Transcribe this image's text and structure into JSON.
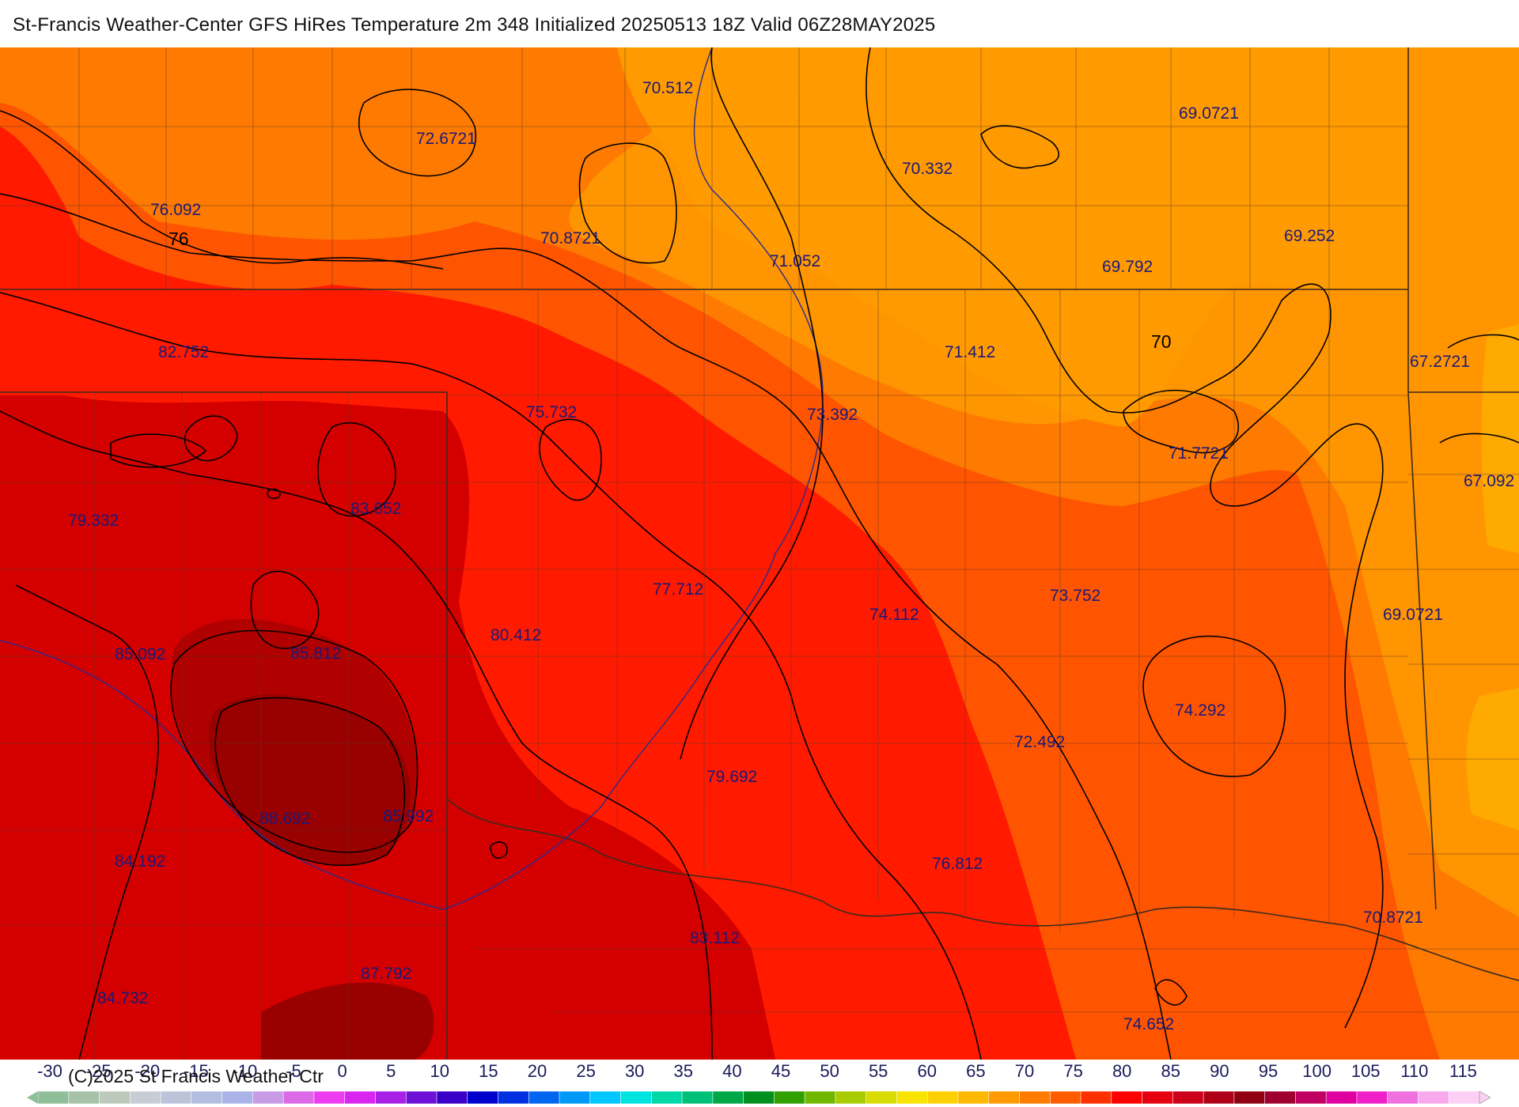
{
  "title": "St-Francis Weather-Center GFS HiRes Temperature 2m  348 Initialized 20250513 18Z Valid 06Z28MAY2025",
  "copyright": "(C)2025 St Francis Weather Ctr",
  "contour_labels": [
    "76",
    "70"
  ],
  "point_values": [
    "70.512",
    "72.6721",
    "76.092",
    "70.8721",
    "70.332",
    "69.0721",
    "69.252",
    "71.052",
    "69.792",
    "82.752",
    "71.412",
    "67.2721",
    "75.732",
    "73.392",
    "71.7721",
    "83.652",
    "79.332",
    "67.092",
    "77.712",
    "74.112",
    "73.752",
    "69.0721",
    "80.412",
    "85.092",
    "85.812",
    "74.292",
    "72.492",
    "79.692",
    "88.692",
    "85.992",
    "84.192",
    "76.812",
    "70.8721",
    "83.112",
    "87.792",
    "84.732",
    "74.652"
  ],
  "legend": {
    "ticks": [
      "-30",
      "-25",
      "-20",
      "-15",
      "-10",
      "-5",
      "0",
      "5",
      "10",
      "15",
      "20",
      "25",
      "30",
      "35",
      "40",
      "45",
      "50",
      "55",
      "60",
      "65",
      "70",
      "75",
      "80",
      "85",
      "90",
      "95",
      "100",
      "105",
      "110",
      "115"
    ],
    "colors": [
      "#8fbf99",
      "#a6c3a8",
      "#bcc9bb",
      "#c8ccd4",
      "#bcc4dc",
      "#b2bde0",
      "#aab3e8",
      "#c89be6",
      "#dc6ae6",
      "#ee3cf0",
      "#d826f0",
      "#a820e6",
      "#6e10d8",
      "#3a00c8",
      "#0000cc",
      "#0030e0",
      "#0066f0",
      "#0099f8",
      "#00c8ff",
      "#00e4e0",
      "#00d8a8",
      "#00c078",
      "#00a848",
      "#009020",
      "#30a000",
      "#70b800",
      "#a8cc00",
      "#d8dc00",
      "#f8e400",
      "#ffd000",
      "#ffb800",
      "#ff9a00",
      "#ff7c00",
      "#ff5c00",
      "#ff3000",
      "#ff0000",
      "#e60010",
      "#cc0018",
      "#b00018",
      "#900010",
      "#a00030",
      "#c00060",
      "#e000a0",
      "#f020c8",
      "#f070e0",
      "#f8a8ec",
      "#fcd0f4"
    ]
  },
  "colors": {
    "hot_deep": "#a00000",
    "hot": "#cc0000",
    "red": "#ff1a00",
    "orange_red": "#ff5500",
    "orange": "#ff7a00",
    "light_orange": "#ff9500",
    "yellow_orange": "#ffaa00"
  }
}
